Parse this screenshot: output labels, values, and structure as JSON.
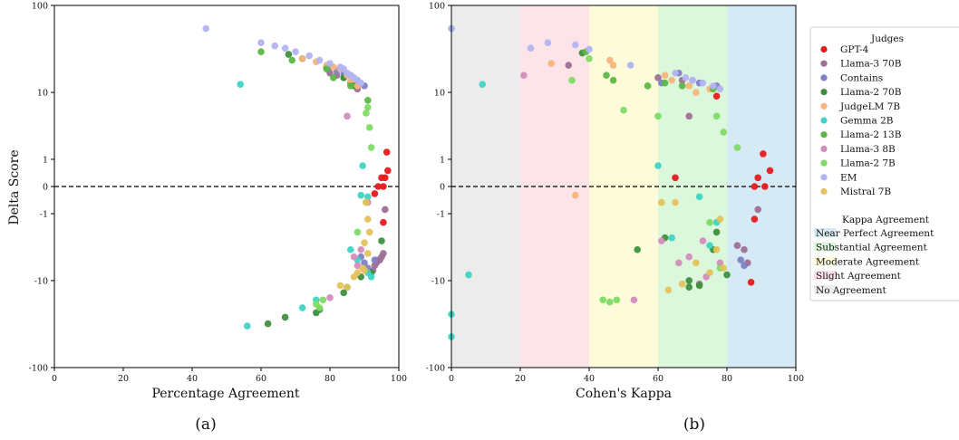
{
  "chart_data": [
    {
      "type": "scatter",
      "panel_caption": "(a)",
      "xlabel": "Percentage Agreement",
      "ylabel": "Delta Score",
      "xlim": [
        0,
        100
      ],
      "ylim": [
        -100,
        100
      ],
      "yscale": "symlog",
      "xticks": [
        "0",
        "20",
        "40",
        "60",
        "80",
        "100"
      ],
      "yticks": [
        "-100",
        "-10",
        "-1",
        "0",
        "1",
        "10",
        "100"
      ],
      "reference_line": {
        "y": 0,
        "style": "dashed"
      },
      "series": [
        {
          "name": "GPT-4",
          "points": [
            [
              96.5,
              1.4
            ],
            [
              96.8,
              0.5
            ],
            [
              96,
              0.25
            ],
            [
              95,
              0.25
            ],
            [
              95.5,
              0
            ],
            [
              94,
              0
            ],
            [
              93,
              -0.2
            ],
            [
              95.5,
              -1.5
            ]
          ]
        },
        {
          "name": "Llama-3 70B",
          "points": [
            [
              80,
              17
            ],
            [
              82,
              16
            ],
            [
              84,
              15
            ],
            [
              86,
              13
            ],
            [
              88,
              11
            ],
            [
              96,
              -0.8
            ],
            [
              95.5,
              -4.5
            ],
            [
              95,
              -5
            ],
            [
              94.5,
              -5.5
            ],
            [
              94,
              -5.5
            ],
            [
              93.5,
              -6
            ],
            [
              93,
              -6.5
            ],
            [
              92.5,
              -7.5
            ],
            [
              92,
              -8
            ]
          ]
        },
        {
          "name": "Contains",
          "points": [
            [
              80,
              20
            ],
            [
              82,
              18
            ],
            [
              84,
              17
            ],
            [
              86,
              16
            ],
            [
              88,
              14
            ],
            [
              90,
              12
            ],
            [
              89,
              -5
            ],
            [
              90,
              -6
            ],
            [
              91,
              -7
            ],
            [
              93,
              -5.5
            ]
          ]
        },
        {
          "name": "Llama-2 70B",
          "points": [
            [
              68,
              28
            ],
            [
              72,
              25
            ],
            [
              79,
              20
            ],
            [
              84,
              15
            ],
            [
              87,
              12
            ],
            [
              95,
              -3
            ],
            [
              92,
              -8
            ],
            [
              89,
              -9
            ],
            [
              85,
              -12
            ],
            [
              84,
              -14
            ],
            [
              77,
              -22
            ],
            [
              76,
              -24
            ],
            [
              67,
              -27
            ],
            [
              62,
              -32
            ]
          ]
        },
        {
          "name": "JudgeLM 7B",
          "points": [
            [
              72,
              25
            ],
            [
              76,
              23
            ],
            [
              79,
              21
            ],
            [
              81,
              20
            ],
            [
              83,
              19
            ],
            [
              85,
              16
            ],
            [
              86,
              14
            ],
            [
              88,
              12
            ]
          ]
        },
        {
          "name": "Gemma 2B",
          "points": [
            [
              54,
              12.5
            ],
            [
              89.5,
              0.7
            ],
            [
              89,
              -0.25
            ],
            [
              91,
              -0.3
            ],
            [
              86,
              -4
            ],
            [
              88,
              -5.5
            ],
            [
              91,
              -8
            ],
            [
              92,
              -9
            ],
            [
              76,
              -17
            ],
            [
              72,
              -21
            ],
            [
              56,
              -34
            ]
          ]
        },
        {
          "name": "Llama-2 13B",
          "points": [
            [
              60,
              30
            ],
            [
              69,
              24
            ],
            [
              79,
              19
            ],
            [
              81,
              15
            ],
            [
              86,
              12
            ],
            [
              91,
              8
            ]
          ]
        },
        {
          "name": "Llama-3 8B",
          "points": [
            [
              85,
              5
            ],
            [
              87,
              -5
            ],
            [
              88,
              -6.5
            ],
            [
              89,
              -4
            ],
            [
              91,
              -0.5
            ],
            [
              80,
              -16
            ]
          ]
        },
        {
          "name": "Llama-2 7B",
          "points": [
            [
              91,
              6.5
            ],
            [
              90.5,
              5.5
            ],
            [
              91.5,
              3.5
            ],
            [
              92,
              1.7
            ],
            [
              90.5,
              -0.5
            ],
            [
              88,
              -2.2
            ],
            [
              77,
              -21
            ],
            [
              76,
              -19
            ],
            [
              78,
              -17
            ]
          ]
        },
        {
          "name": "EM",
          "points": [
            [
              44,
              55
            ],
            [
              60,
              38
            ],
            [
              64,
              35
            ],
            [
              67,
              33
            ],
            [
              70,
              30
            ],
            [
              74,
              27
            ],
            [
              77,
              24
            ],
            [
              80,
              22
            ],
            [
              83,
              20
            ],
            [
              84,
              19
            ],
            [
              85,
              17
            ],
            [
              86,
              16
            ],
            [
              87,
              15
            ],
            [
              88,
              14
            ],
            [
              89,
              13
            ]
          ]
        },
        {
          "name": "Mistral 7B",
          "points": [
            [
              90.5,
              -0.5
            ],
            [
              91,
              -1.3
            ],
            [
              91.5,
              -2.2
            ],
            [
              90,
              -3.2
            ],
            [
              91,
              -4.5
            ],
            [
              89.5,
              -7
            ],
            [
              90,
              -7.5
            ],
            [
              88,
              -8
            ],
            [
              87,
              -9
            ],
            [
              83,
              -11.5
            ],
            [
              85,
              -12
            ]
          ]
        }
      ]
    },
    {
      "type": "scatter",
      "panel_caption": "(b)",
      "xlabel": "Cohen's Kappa",
      "ylabel": "",
      "xlim": [
        0,
        100
      ],
      "ylim": [
        -100,
        100
      ],
      "yscale": "symlog",
      "xticks": [
        "0",
        "20",
        "40",
        "60",
        "80",
        "100"
      ],
      "yticks": [
        "-100",
        "-10",
        "-1",
        "0",
        "1",
        "10",
        "100"
      ],
      "reference_line": {
        "y": 0,
        "style": "dashed"
      },
      "bands": [
        {
          "name": "No Agreement",
          "range": [
            0,
            20
          ],
          "color": "#ececec"
        },
        {
          "name": "Slight Agreement",
          "range": [
            20,
            40
          ],
          "color": "#fde4e9"
        },
        {
          "name": "Moderate Agreement",
          "range": [
            40,
            60
          ],
          "color": "#fdfbd9"
        },
        {
          "name": "Substantial Agreement",
          "range": [
            60,
            80
          ],
          "color": "#dcf8dc"
        },
        {
          "name": "Near Perfect Agreement",
          "range": [
            80,
            100
          ],
          "color": "#d6eaf5"
        }
      ],
      "series": [
        {
          "name": "GPT-4",
          "points": [
            [
              65,
              0.25
            ],
            [
              77,
              9
            ],
            [
              88,
              -1.3
            ],
            [
              90.5,
              1.3
            ],
            [
              92.5,
              0.5
            ],
            [
              89,
              0.25
            ],
            [
              88,
              0
            ],
            [
              91,
              0
            ],
            [
              87,
              -10.5
            ]
          ]
        },
        {
          "name": "Llama-3 70B",
          "points": [
            [
              34,
              21
            ],
            [
              60,
              15
            ],
            [
              67,
              14
            ],
            [
              69,
              5
            ],
            [
              72,
              -11
            ],
            [
              83,
              -3.5
            ],
            [
              85,
              -4
            ],
            [
              86,
              -6
            ],
            [
              89,
              -0.8
            ]
          ]
        },
        {
          "name": "Contains",
          "points": [
            [
              61,
              13
            ],
            [
              66,
              17
            ],
            [
              70,
              14
            ],
            [
              72,
              13
            ],
            [
              77,
              12
            ],
            [
              84,
              -5.5
            ],
            [
              85,
              -6.5
            ]
          ]
        },
        {
          "name": "Llama-2 70B",
          "points": [
            [
              38,
              29
            ],
            [
              54,
              -4
            ],
            [
              62,
              -2.7
            ],
            [
              69,
              -10
            ],
            [
              69,
              -12
            ],
            [
              72,
              -11.5
            ],
            [
              77,
              -2.2
            ],
            [
              80,
              -8.5
            ],
            [
              76,
              -4
            ]
          ]
        },
        {
          "name": "JudgeLM 7B",
          "points": [
            [
              29,
              22
            ],
            [
              36,
              -0.25
            ],
            [
              46,
              24
            ],
            [
              47,
              21
            ],
            [
              62,
              16
            ],
            [
              64,
              14
            ],
            [
              69,
              12
            ],
            [
              71,
              10
            ],
            [
              75,
              11
            ]
          ]
        },
        {
          "name": "Gemma 2B",
          "points": [
            [
              0,
              55
            ],
            [
              9,
              12.5
            ],
            [
              5,
              -8.5
            ],
            [
              0,
              -25
            ],
            [
              0,
              -45
            ],
            [
              60,
              0.7
            ],
            [
              64,
              -2.7
            ],
            [
              72,
              -0.3
            ],
            [
              75,
              -3.5
            ],
            [
              77,
              -1.5
            ]
          ]
        },
        {
          "name": "Llama-2 13B",
          "points": [
            [
              39,
              30
            ],
            [
              45,
              16
            ],
            [
              47,
              14
            ],
            [
              57,
              12
            ],
            [
              62,
              13
            ],
            [
              67,
              12
            ],
            [
              76,
              11
            ]
          ]
        },
        {
          "name": "Llama-3 8B",
          "points": [
            [
              21,
              16
            ],
            [
              53,
              -17
            ],
            [
              61,
              -3
            ],
            [
              66,
              -6
            ],
            [
              69,
              -5
            ],
            [
              73,
              -3
            ],
            [
              74,
              -9
            ],
            [
              78,
              -6
            ]
          ]
        },
        {
          "name": "Llama-2 7B",
          "points": [
            [
              35,
              14
            ],
            [
              40,
              25
            ],
            [
              50,
              6
            ],
            [
              60,
              5
            ],
            [
              77,
              5
            ],
            [
              79,
              3
            ],
            [
              83,
              1.7
            ],
            [
              44,
              -17
            ],
            [
              46,
              -18
            ],
            [
              48,
              -17
            ],
            [
              75,
              -1.5
            ],
            [
              78,
              -7
            ]
          ]
        },
        {
          "name": "EM",
          "points": [
            [
              0,
              55
            ],
            [
              23,
              33
            ],
            [
              28,
              38
            ],
            [
              36,
              36
            ],
            [
              40,
              32
            ],
            [
              52,
              21
            ],
            [
              65,
              17
            ],
            [
              68,
              15
            ],
            [
              70,
              14
            ],
            [
              73,
              13
            ],
            [
              76,
              12
            ],
            [
              78,
              11
            ]
          ]
        },
        {
          "name": "Mistral 7B",
          "points": [
            [
              61,
              -0.5
            ],
            [
              65,
              -0.5
            ],
            [
              71,
              -6
            ],
            [
              75,
              -8
            ],
            [
              77,
              -4
            ],
            [
              78,
              -1.3
            ],
            [
              79,
              -7
            ],
            [
              63,
              -13
            ],
            [
              67,
              -11
            ]
          ]
        }
      ]
    }
  ],
  "colors": {
    "GPT-4": "#e8191c",
    "Llama-3 70B": "#9f6f96",
    "Contains": "#7f80c6",
    "Llama-2 70B": "#3f8f3f",
    "JudgeLM 7B": "#f7b57a",
    "Gemma 2B": "#3ed5c3",
    "Llama-2 13B": "#5db845",
    "Llama-3 8B": "#d48cbd",
    "Llama-2 7B": "#7edc64",
    "EM": "#b3b4f2",
    "Mistral 7B": "#e4c15c"
  },
  "legend": {
    "judges_title": "Judges",
    "judges": [
      "GPT-4",
      "Llama-3 70B",
      "Contains",
      "Llama-2 70B",
      "JudgeLM 7B",
      "Gemma 2B",
      "Llama-2 13B",
      "Llama-3 8B",
      "Llama-2 7B",
      "EM",
      "Mistral 7B"
    ],
    "kappa_title": "Kappa Agreement",
    "kappa": [
      "Near Perfect Agreement",
      "Substantial Agreement",
      "Moderate Agreement",
      "Slight Agreement",
      "No Agreement"
    ],
    "kappa_colors": [
      "#d6eaf5",
      "#dcf8dc",
      "#fdfbd9",
      "#fde4e9",
      "#ececec"
    ]
  }
}
